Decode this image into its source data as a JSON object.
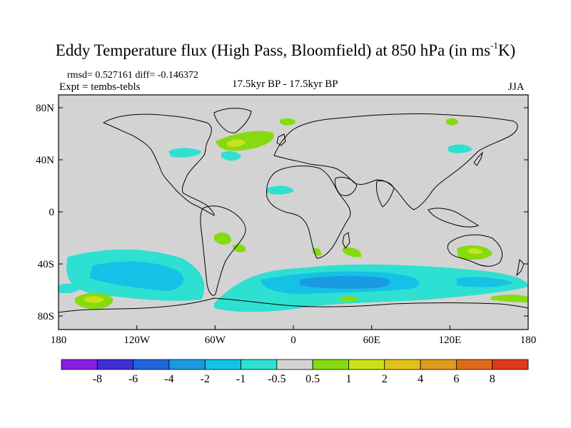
{
  "title": {
    "main": "Eddy Temperature flux (High Pass, Bloomfield) at 850 hPa (in ms",
    "sup": "-1",
    "end": "K)"
  },
  "stats": "rmsd= 0.527161 diff= -0.146372",
  "expt": "Expt = tembs-tebls",
  "period": "17.5kyr BP - 17.5kyr BP",
  "season": "JJA",
  "lat_ticks": [
    "80N",
    "40N",
    "0",
    "40S",
    "80S"
  ],
  "lon_ticks": [
    "180",
    "120W",
    "60W",
    "0",
    "60E",
    "120E",
    "180"
  ],
  "colorbar": {
    "colors": [
      "#8a1fe0",
      "#3c2fd8",
      "#1e64dc",
      "#1a9ae0",
      "#15c1e6",
      "#2ee0d2",
      "#d3d3d3",
      "#86db10",
      "#c9e21a",
      "#e0c21a",
      "#e09a1a",
      "#e06a1a",
      "#e0381a"
    ],
    "labels": [
      "-8",
      "-6",
      "-4",
      "-2",
      "-1",
      "-0.5",
      "0.5",
      "1",
      "2",
      "4",
      "6",
      "8"
    ]
  },
  "colors": {
    "land_ocean": "#d3d3d3",
    "coast": "#000000",
    "pos_green": "#86db10",
    "pos_yellow": "#c9e21a",
    "neg_cyan": "#2ee0d2",
    "neg_light": "#15c1e6",
    "neg_blue": "#1a9ae0"
  }
}
